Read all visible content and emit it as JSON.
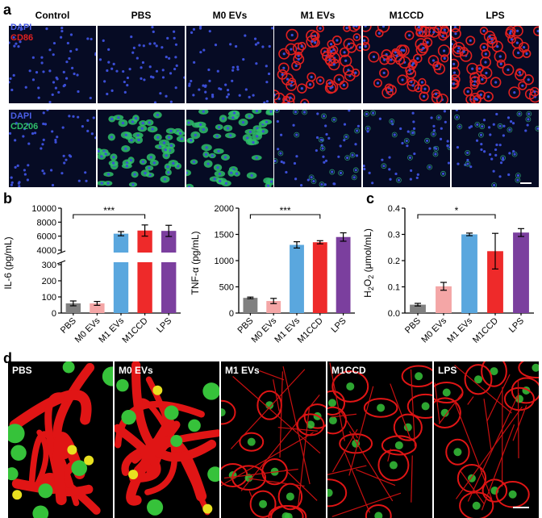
{
  "panel_a": {
    "label": "a",
    "columns": [
      "Control",
      "PBS",
      "M0 EVs",
      "M1 EVs",
      "M1CCD",
      "LPS"
    ],
    "row1_stains": [
      "DAPI",
      "CD86"
    ],
    "row2_stains": [
      "DAPI",
      "CD206"
    ],
    "colors": {
      "dapi": "#3b4ed6",
      "cd86": "#e02020",
      "cd206": "#2fbf6a"
    }
  },
  "panel_b": {
    "label": "b"
  },
  "panel_c": {
    "label": "c"
  },
  "panel_d": {
    "label": "d",
    "tiles": [
      "PBS",
      "M0 EVs",
      "M1 EVs",
      "M1CCD",
      "LPS"
    ]
  },
  "chart_data": [
    {
      "type": "bar",
      "ylabel": "IL-6 (pg/mL)",
      "categories": [
        "PBS",
        "M0 EVs",
        "M1 EVs",
        "M1CCD",
        "LPS"
      ],
      "values": [
        60,
        60,
        6350,
        6800,
        6750
      ],
      "errors": [
        15,
        12,
        300,
        800,
        800
      ],
      "colors": [
        "#808080",
        "#f4a6a6",
        "#5aa7de",
        "#ee2a2a",
        "#7b3f9e"
      ],
      "broken_axis": {
        "lower": [
          0,
          300
        ],
        "upper": [
          4000,
          10000
        ]
      },
      "lower_ticks": [
        0,
        100,
        200,
        300
      ],
      "upper_ticks": [
        4000,
        6000,
        8000,
        10000
      ],
      "significance": {
        "from": "PBS",
        "to": "M1CCD",
        "label": "***"
      }
    },
    {
      "type": "bar",
      "ylabel": "TNF-α (pg/mL)",
      "categories": [
        "PBS",
        "M0 EVs",
        "M1 EVs",
        "M1CCD",
        "LPS"
      ],
      "values": [
        290,
        230,
        1300,
        1350,
        1450
      ],
      "errors": [
        15,
        50,
        60,
        30,
        80
      ],
      "colors": [
        "#808080",
        "#f4a6a6",
        "#5aa7de",
        "#ee2a2a",
        "#7b3f9e"
      ],
      "ylim": [
        0,
        2000
      ],
      "ticks": [
        0,
        500,
        1000,
        1500,
        2000
      ],
      "significance": {
        "from": "PBS",
        "to": "M1CCD",
        "label": "***"
      }
    },
    {
      "type": "bar",
      "ylabel_main": "H",
      "ylabel_sub1": "2",
      "ylabel_mid": "O",
      "ylabel_sub2": "2",
      "ylabel_tail": " (μmol/mL)",
      "categories": [
        "PBS",
        "M0 EVs",
        "M1 EVs",
        "M1CCD",
        "LPS"
      ],
      "values": [
        0.032,
        0.102,
        0.3,
        0.236,
        0.307
      ],
      "errors": [
        0.005,
        0.015,
        0.005,
        0.068,
        0.015
      ],
      "colors": [
        "#808080",
        "#f4a6a6",
        "#5aa7de",
        "#ee2a2a",
        "#7b3f9e"
      ],
      "ylim": [
        0,
        0.4
      ],
      "ticks": [
        "0.0",
        "0.1",
        "0.2",
        "0.3",
        "0.4"
      ],
      "significance": {
        "from": "PBS",
        "to": "M1CCD",
        "label": "*"
      }
    }
  ]
}
